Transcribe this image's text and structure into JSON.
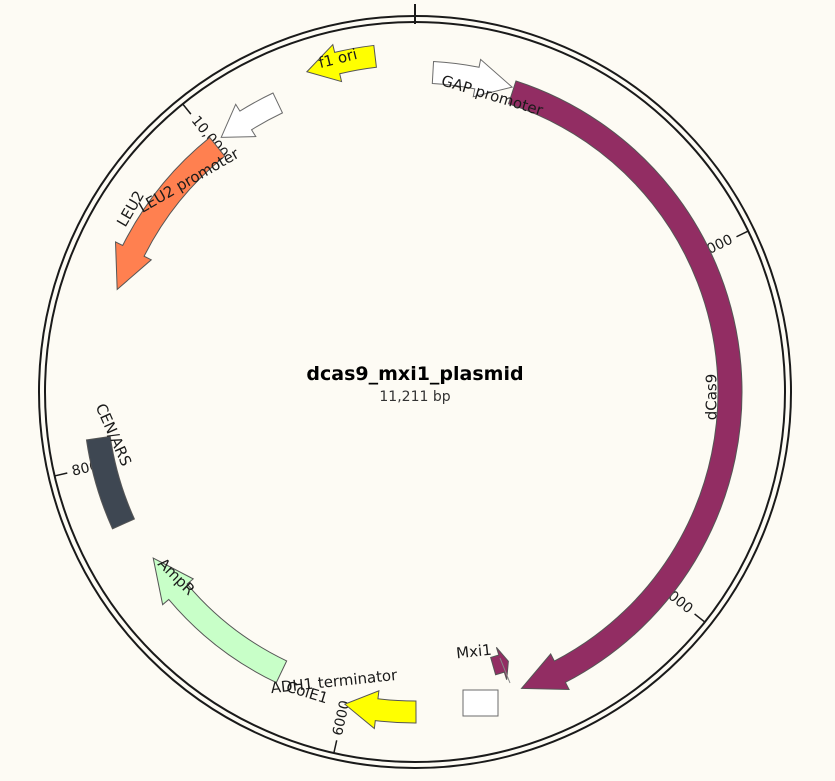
{
  "plasmid": {
    "name": "dcas9_mxi1_plasmid",
    "length_label": "11,211 bp",
    "length_bp": 11211
  },
  "ticks": [
    {
      "label": "10,000",
      "bp": 10000
    },
    {
      "label": "2000",
      "bp": 2000
    },
    {
      "label": "4000",
      "bp": 4000
    },
    {
      "label": "6000",
      "bp": 6000
    },
    {
      "label": "8000",
      "bp": 8000
    }
  ],
  "features": [
    {
      "id": "gap-promoter",
      "name": "GAP promoter",
      "color": "#ffffff",
      "strand": 1,
      "start": 100,
      "end": 550
    },
    {
      "id": "dcas9",
      "name": "dCas9",
      "color": "#922d63",
      "strand": 1,
      "start": 560,
      "end": 4990
    },
    {
      "id": "mxi1",
      "name": "Mxi1",
      "color": "#922d63",
      "strand": -1,
      "start": 5010,
      "end": 5110
    },
    {
      "id": "adh1-terminator",
      "name": "ADH1 terminator",
      "color": "#ffffff",
      "strand": 1,
      "start": 5130,
      "end": 5330
    },
    {
      "id": "cole1",
      "name": "ColE1",
      "color": "#ffff00",
      "strand": 1,
      "start": 5600,
      "end": 6000
    },
    {
      "id": "ampr",
      "name": "AmpR",
      "color": "#c8ffc8",
      "strand": 1,
      "start": 6400,
      "end": 7400
    },
    {
      "id": "cen-ars",
      "name": "CEN/ARS",
      "color": "#3e4752",
      "strand": 0,
      "start": 7650,
      "end": 8150
    },
    {
      "id": "leu2",
      "name": "LEU2",
      "color": "#ff8050",
      "strand": -1,
      "start": 9000,
      "end": 10000
    },
    {
      "id": "leu2-promoter",
      "name": "LEU2 promoter",
      "color": "#ffffff",
      "strand": -1,
      "start": 10050,
      "end": 10420
    },
    {
      "id": "f1-ori",
      "name": "f1 ori",
      "color": "#ffff00",
      "strand": -1,
      "start": 10630,
      "end": 11000
    }
  ]
}
